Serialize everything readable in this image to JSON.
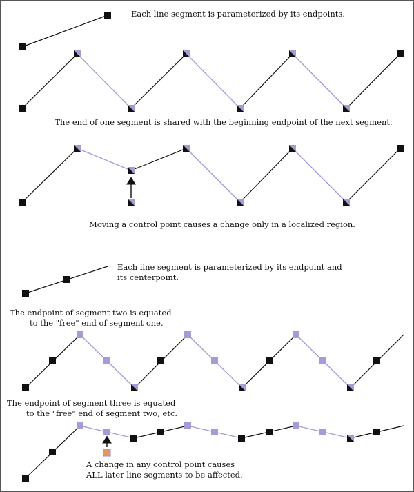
{
  "captions": {
    "c1": "Each line segment is parameterized by its endpoints.",
    "c2": "The end of one segment is shared with the beginning endpoint of the next segment.",
    "c3": "Moving a control point causes a change only in a localized region.",
    "c4a": "Each line segment is parameterized by its endpoint and",
    "c4b": "its centerpoint.",
    "c5a": "The endpoint of segment two is equated",
    "c5b": "to the \"free\" end of segment one.",
    "c6a": "The endpoint of segment three is equated",
    "c6b": "to the \"free\" end of segment two, etc.",
    "c7a": "A change in any control point causes",
    "c7b": "ALL later line segments to be affected."
  },
  "colors": {
    "black_segment": "#111111",
    "purple_segment": "#a59bd6",
    "control_point_purple": "#a59bd6",
    "control_point_black": "#111111",
    "moved_point": "#e8955c"
  }
}
